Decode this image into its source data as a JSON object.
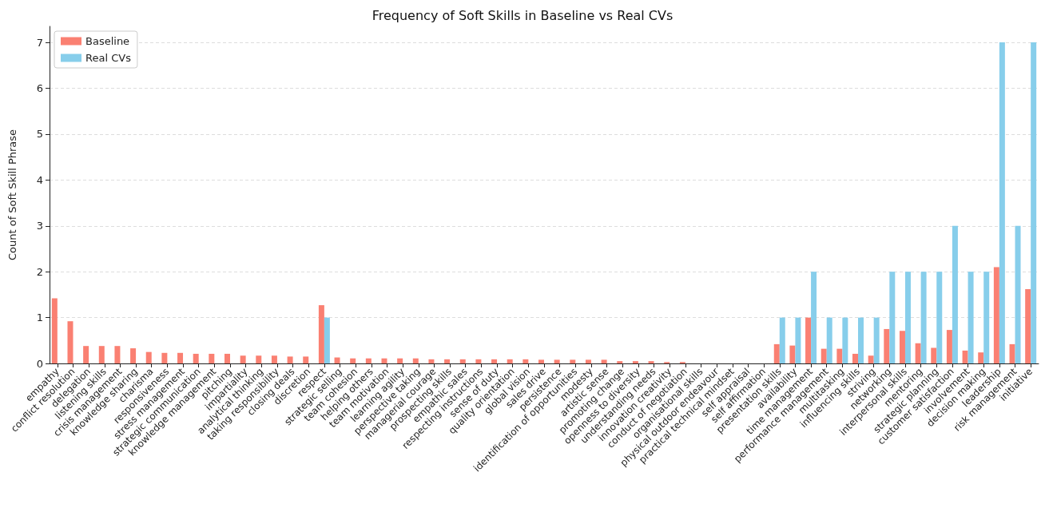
{
  "chart_data": {
    "type": "bar",
    "title": "Frequency of Soft Skills in Baseline vs Real CVs",
    "ylabel": "Count of Soft Skill Phrase",
    "categories": [
      "empathy",
      "conflict resolution",
      "delegation",
      "listening skills",
      "crisis management",
      "knowledge sharing",
      "charisma",
      "responsiveness",
      "stress management",
      "strategic communication",
      "knowledge management",
      "pitching",
      "impartiality",
      "analytical thinking",
      "taking responsibility",
      "closing deals",
      "discretion",
      "respect",
      "strategic selling",
      "team cohesion",
      "helping others",
      "team motivation",
      "learning agility",
      "perspective taking",
      "managerial courage",
      "prospecting skills",
      "empathic sales",
      "respecting instructions",
      "sense of duty",
      "quality orientation",
      "global vision",
      "sales drive",
      "persistence",
      "identification of opportunities",
      "modesty",
      "artistic sense",
      "promoting change",
      "openness to diversity",
      "understanding needs",
      "innovation creativity",
      "conduct of negotiation",
      "organisational skills",
      "physical outdoor endeavour",
      "practical technical mindset",
      "self appraisal",
      "self affirmation",
      "presentation skills",
      "availability",
      "time management",
      "performance management",
      "multitasking",
      "influencing skills",
      "striving",
      "networking",
      "interpersonal skills",
      "mentoring",
      "strategic planning",
      "customer satisfaction",
      "involvement",
      "decision making",
      "leadership",
      "risk management",
      "initiative"
    ],
    "series": [
      {
        "name": "Baseline",
        "color": "#fa8072",
        "values": [
          1.42,
          0.92,
          0.38,
          0.38,
          0.38,
          0.33,
          0.25,
          0.23,
          0.23,
          0.21,
          0.21,
          0.21,
          0.17,
          0.17,
          0.17,
          0.15,
          0.15,
          1.27,
          0.13,
          0.11,
          0.11,
          0.11,
          0.11,
          0.11,
          0.09,
          0.09,
          0.09,
          0.09,
          0.09,
          0.09,
          0.09,
          0.08,
          0.08,
          0.08,
          0.08,
          0.08,
          0.05,
          0.05,
          0.05,
          0.03,
          0.03,
          0,
          0,
          0,
          0,
          0,
          0.42,
          0.39,
          1.0,
          0.32,
          0.32,
          0.21,
          0.17,
          0.75,
          0.71,
          0.44,
          0.34,
          0.73,
          0.28,
          0.24,
          2.1,
          0.42,
          1.62
        ]
      },
      {
        "name": "Real CVs",
        "color": "#87ceeb",
        "values": [
          0,
          0,
          0,
          0,
          0,
          0,
          0,
          0,
          0,
          0,
          0,
          0,
          0,
          0,
          0,
          0,
          0,
          1,
          0,
          0,
          0,
          0,
          0,
          0,
          0,
          0,
          0,
          0,
          0,
          0,
          0,
          0,
          0,
          0,
          0,
          0,
          0,
          0,
          0,
          0,
          0,
          0,
          0,
          0,
          0,
          0,
          1,
          1,
          2,
          1,
          1,
          1,
          1,
          2,
          2,
          2,
          2,
          3,
          2,
          2,
          7,
          3,
          7
        ]
      }
    ],
    "ylim": [
      0,
      7.35
    ],
    "yticks": [
      0,
      1,
      2,
      3,
      4,
      5,
      6,
      7
    ],
    "grid": "y",
    "legend": "top left"
  }
}
